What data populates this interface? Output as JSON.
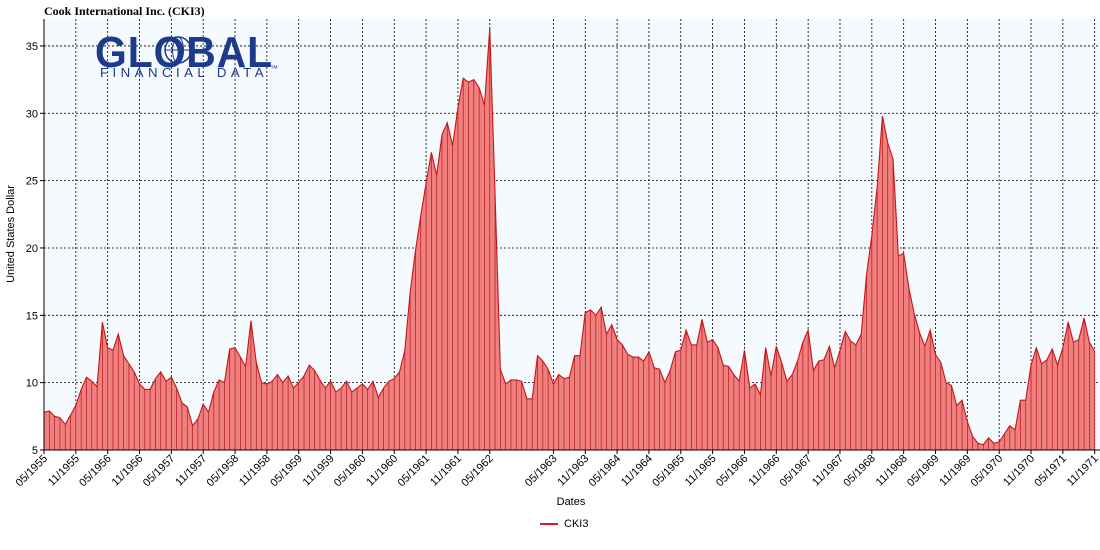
{
  "logo": {
    "main": "GLOBAL",
    "sub": "FINANCIAL DATA",
    "tm": "™"
  },
  "chart_data": {
    "type": "area",
    "title": "Cook International Inc. (CKI3)",
    "xlabel": "Dates",
    "ylabel": "United States Dollar",
    "ylim": [
      5,
      37
    ],
    "yticks": [
      5,
      10,
      15,
      20,
      25,
      30,
      35
    ],
    "xrange": [
      "1955-05",
      "1971-12"
    ],
    "xtick_labels": [
      "05/1955",
      "11/1955",
      "05/1956",
      "11/1956",
      "05/1957",
      "11/1957",
      "05/1958",
      "11/1958",
      "05/1959",
      "11/1959",
      "05/1960",
      "11/1960",
      "05/1961",
      "11/1961",
      "05/1962",
      "05/1963",
      "11/1963",
      "05/1964",
      "11/1964",
      "05/1965",
      "11/1965",
      "05/1966",
      "11/1966",
      "05/1967",
      "11/1967",
      "05/1968",
      "11/1968",
      "05/1969",
      "11/1969",
      "05/1970",
      "11/1970",
      "05/1971",
      "11/1971"
    ],
    "grid": true,
    "legend_position": "bottom-center",
    "series": [
      {
        "name": "CKI3",
        "color": "#e31a1c",
        "fill": "#f08080",
        "points": [
          [
            "1955-05",
            7.8
          ],
          [
            "1955-06",
            7.9
          ],
          [
            "1955-07",
            7.5
          ],
          [
            "1955-08",
            7.4
          ],
          [
            "1955-09",
            6.9
          ],
          [
            "1955-10",
            7.6
          ],
          [
            "1955-11",
            8.3
          ],
          [
            "1955-12",
            9.5
          ],
          [
            "1956-01",
            10.4
          ],
          [
            "1956-02",
            10.1
          ],
          [
            "1956-03",
            9.7
          ],
          [
            "1956-04",
            14.5
          ],
          [
            "1956-05",
            12.6
          ],
          [
            "1956-06",
            12.4
          ],
          [
            "1956-07",
            13.6
          ],
          [
            "1956-08",
            12.0
          ],
          [
            "1956-09",
            11.4
          ],
          [
            "1956-10",
            10.8
          ],
          [
            "1956-11",
            9.9
          ],
          [
            "1956-12",
            9.5
          ],
          [
            "1957-01",
            9.5
          ],
          [
            "1957-02",
            10.3
          ],
          [
            "1957-03",
            10.8
          ],
          [
            "1957-04",
            10.1
          ],
          [
            "1957-05",
            10.4
          ],
          [
            "1957-06",
            9.6
          ],
          [
            "1957-07",
            8.5
          ],
          [
            "1957-08",
            8.2
          ],
          [
            "1957-09",
            6.8
          ],
          [
            "1957-10",
            7.3
          ],
          [
            "1957-11",
            8.4
          ],
          [
            "1957-12",
            7.8
          ],
          [
            "1958-01",
            9.3
          ],
          [
            "1958-02",
            10.2
          ],
          [
            "1958-03",
            10.0
          ],
          [
            "1958-04",
            12.5
          ],
          [
            "1958-05",
            12.6
          ],
          [
            "1958-06",
            11.9
          ],
          [
            "1958-07",
            11.2
          ],
          [
            "1958-08",
            14.6
          ],
          [
            "1958-09",
            11.5
          ],
          [
            "1958-10",
            10.0
          ],
          [
            "1958-11",
            9.9
          ],
          [
            "1958-12",
            10.1
          ],
          [
            "1959-01",
            10.6
          ],
          [
            "1959-02",
            10.0
          ],
          [
            "1959-03",
            10.5
          ],
          [
            "1959-04",
            9.6
          ],
          [
            "1959-05",
            10.0
          ],
          [
            "1959-06",
            10.5
          ],
          [
            "1959-07",
            11.3
          ],
          [
            "1959-08",
            10.9
          ],
          [
            "1959-09",
            10.2
          ],
          [
            "1959-10",
            9.6
          ],
          [
            "1959-11",
            10.1
          ],
          [
            "1959-12",
            9.3
          ],
          [
            "1960-01",
            9.6
          ],
          [
            "1960-02",
            10.1
          ],
          [
            "1960-03",
            9.3
          ],
          [
            "1960-04",
            9.6
          ],
          [
            "1960-05",
            9.9
          ],
          [
            "1960-06",
            9.5
          ],
          [
            "1960-07",
            10.1
          ],
          [
            "1960-08",
            8.9
          ],
          [
            "1960-09",
            9.6
          ],
          [
            "1960-10",
            10.1
          ],
          [
            "1960-11",
            10.3
          ],
          [
            "1960-12",
            10.8
          ],
          [
            "1961-01",
            12.4
          ],
          [
            "1961-02",
            16.7
          ],
          [
            "1961-03",
            19.8
          ],
          [
            "1961-04",
            22.4
          ],
          [
            "1961-05",
            24.8
          ],
          [
            "1961-06",
            27.1
          ],
          [
            "1961-07",
            25.4
          ],
          [
            "1961-08",
            28.4
          ],
          [
            "1961-09",
            29.3
          ],
          [
            "1961-10",
            27.6
          ],
          [
            "1961-11",
            30.4
          ],
          [
            "1961-12",
            32.6
          ],
          [
            "1962-01",
            32.3
          ],
          [
            "1962-02",
            32.5
          ],
          [
            "1962-03",
            31.9
          ],
          [
            "1962-04",
            30.6
          ],
          [
            "1962-05",
            36.3
          ],
          [
            "1962-06",
            24.0
          ],
          [
            "1962-07",
            11.0
          ],
          [
            "1962-08",
            9.9
          ],
          [
            "1962-09",
            10.2
          ],
          [
            "1962-10",
            10.2
          ],
          [
            "1962-11",
            10.1
          ],
          [
            "1962-12",
            8.8
          ],
          [
            "1963-01",
            8.8
          ],
          [
            "1963-02",
            12.0
          ],
          [
            "1963-03",
            11.6
          ],
          [
            "1963-04",
            11.0
          ],
          [
            "1963-05",
            9.9
          ],
          [
            "1963-06",
            10.6
          ],
          [
            "1963-07",
            10.3
          ],
          [
            "1963-08",
            10.4
          ],
          [
            "1963-09",
            12.0
          ],
          [
            "1963-10",
            12.0
          ],
          [
            "1963-11",
            15.2
          ],
          [
            "1963-12",
            15.4
          ],
          [
            "1964-01",
            15.0
          ],
          [
            "1964-02",
            15.6
          ],
          [
            "1964-03",
            13.6
          ],
          [
            "1964-04",
            14.3
          ],
          [
            "1964-05",
            13.2
          ],
          [
            "1964-06",
            12.8
          ],
          [
            "1964-07",
            12.1
          ],
          [
            "1964-08",
            11.9
          ],
          [
            "1964-09",
            11.9
          ],
          [
            "1964-10",
            11.6
          ],
          [
            "1964-11",
            12.3
          ],
          [
            "1964-12",
            11.1
          ],
          [
            "1965-01",
            11.0
          ],
          [
            "1965-02",
            10.0
          ],
          [
            "1965-03",
            10.9
          ],
          [
            "1965-04",
            12.3
          ],
          [
            "1965-05",
            12.4
          ],
          [
            "1965-06",
            13.9
          ],
          [
            "1965-07",
            12.8
          ],
          [
            "1965-08",
            12.8
          ],
          [
            "1965-09",
            14.7
          ],
          [
            "1965-10",
            13.0
          ],
          [
            "1965-11",
            13.2
          ],
          [
            "1965-12",
            12.6
          ],
          [
            "1966-01",
            11.3
          ],
          [
            "1966-02",
            11.2
          ],
          [
            "1966-03",
            10.6
          ],
          [
            "1966-04",
            10.1
          ],
          [
            "1966-05",
            12.4
          ],
          [
            "1966-06",
            9.6
          ],
          [
            "1966-07",
            9.9
          ],
          [
            "1966-08",
            9.1
          ],
          [
            "1966-09",
            12.6
          ],
          [
            "1966-10",
            10.5
          ],
          [
            "1966-11",
            12.7
          ],
          [
            "1966-12",
            11.5
          ],
          [
            "1967-01",
            10.1
          ],
          [
            "1967-02",
            10.6
          ],
          [
            "1967-03",
            11.6
          ],
          [
            "1967-04",
            13.0
          ],
          [
            "1967-05",
            13.9
          ],
          [
            "1967-06",
            10.9
          ],
          [
            "1967-07",
            11.6
          ],
          [
            "1967-08",
            11.7
          ],
          [
            "1967-09",
            12.7
          ],
          [
            "1967-10",
            11.1
          ],
          [
            "1967-11",
            12.4
          ],
          [
            "1967-12",
            13.8
          ],
          [
            "1968-01",
            13.1
          ],
          [
            "1968-02",
            12.8
          ],
          [
            "1968-03",
            13.6
          ],
          [
            "1968-04",
            18.0
          ],
          [
            "1968-05",
            20.9
          ],
          [
            "1968-06",
            24.5
          ],
          [
            "1968-07",
            29.8
          ],
          [
            "1968-08",
            27.8
          ],
          [
            "1968-09",
            26.6
          ],
          [
            "1968-10",
            19.4
          ],
          [
            "1968-11",
            19.6
          ],
          [
            "1968-12",
            17.0
          ],
          [
            "1969-01",
            15.1
          ],
          [
            "1969-02",
            13.7
          ],
          [
            "1969-03",
            12.7
          ],
          [
            "1969-04",
            13.9
          ],
          [
            "1969-05",
            12.1
          ],
          [
            "1969-06",
            11.5
          ],
          [
            "1969-07",
            10.0
          ],
          [
            "1969-08",
            9.8
          ],
          [
            "1969-09",
            8.3
          ],
          [
            "1969-10",
            8.7
          ],
          [
            "1969-11",
            7.1
          ],
          [
            "1969-12",
            6.0
          ],
          [
            "1970-01",
            5.5
          ],
          [
            "1970-02",
            5.4
          ],
          [
            "1970-03",
            5.9
          ],
          [
            "1970-04",
            5.5
          ],
          [
            "1970-05",
            5.6
          ],
          [
            "1970-06",
            6.2
          ],
          [
            "1970-07",
            6.8
          ],
          [
            "1970-08",
            6.5
          ],
          [
            "1970-09",
            8.7
          ],
          [
            "1970-10",
            8.7
          ],
          [
            "1970-11",
            11.3
          ],
          [
            "1970-12",
            12.6
          ],
          [
            "1971-01",
            11.4
          ],
          [
            "1971-02",
            11.7
          ],
          [
            "1971-03",
            12.5
          ],
          [
            "1971-04",
            11.3
          ],
          [
            "1971-05",
            12.6
          ],
          [
            "1971-06",
            14.5
          ],
          [
            "1971-07",
            13.0
          ],
          [
            "1971-08",
            13.2
          ],
          [
            "1971-09",
            14.8
          ],
          [
            "1971-10",
            13.0
          ],
          [
            "1971-11",
            12.3
          ]
        ]
      }
    ]
  }
}
